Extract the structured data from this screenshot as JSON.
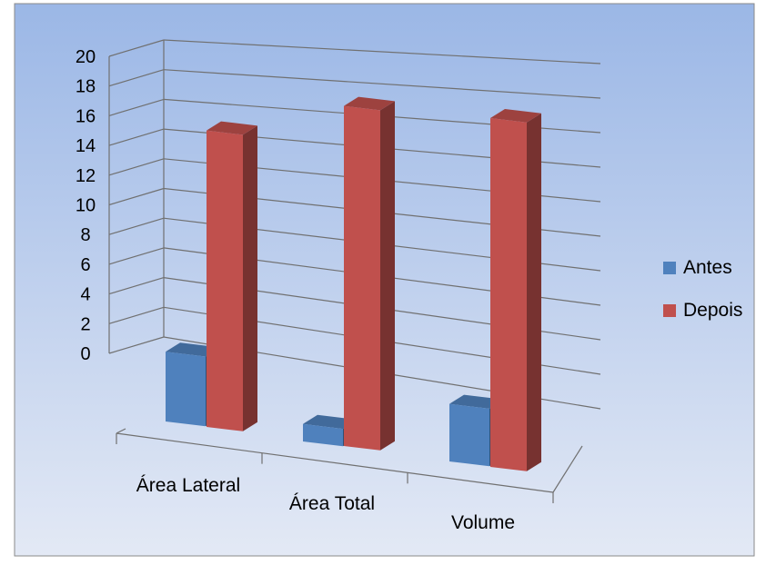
{
  "chart_data": {
    "type": "bar",
    "style": "3d-clustered-column",
    "title": "",
    "xlabel": "",
    "ylabel": "",
    "categories": [
      "Área Lateral",
      "Área Total",
      "Volume"
    ],
    "y_ticks": [
      "0",
      "2",
      "4",
      "6",
      "8",
      "10",
      "12",
      "14",
      "16",
      "18",
      "20"
    ],
    "ylim": [
      0,
      20
    ],
    "grid": true,
    "legend_position": "right",
    "series": [
      {
        "name": "Antes",
        "values": [
          4,
          1,
          3.3
        ],
        "color": "#4f81bd"
      },
      {
        "name": "Depois",
        "values": [
          17,
          19.5,
          20
        ],
        "color": "#c0504d"
      }
    ],
    "background": {
      "gradient_top": "#9bb7e6",
      "gradient_bottom": "#e3e9f5"
    }
  }
}
